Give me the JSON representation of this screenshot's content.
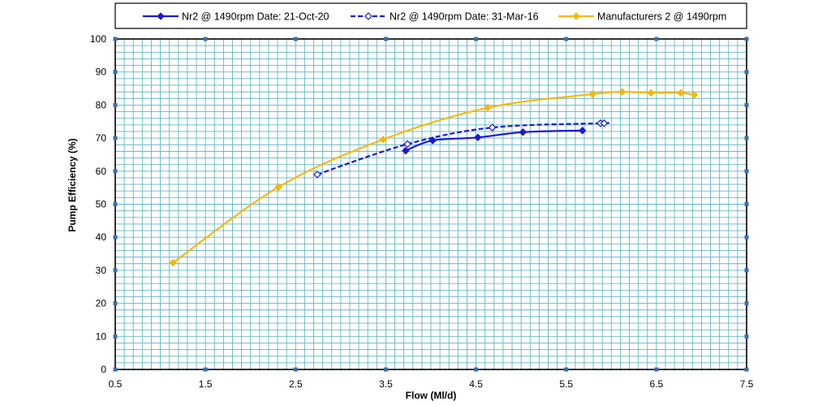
{
  "chart_data": {
    "type": "line",
    "xlabel": "Flow (Ml/d)",
    "ylabel": "Pump Efficiency (%)",
    "xlim": [
      0.5,
      7.5
    ],
    "ylim": [
      0,
      100
    ],
    "x_ticks": [
      "0.5",
      "1.5",
      "2.5",
      "3.5",
      "4.5",
      "5.5",
      "6.5",
      "7.5"
    ],
    "y_ticks": [
      "0",
      "10",
      "20",
      "30",
      "40",
      "50",
      "60",
      "70",
      "80",
      "90",
      "100"
    ],
    "grid": true,
    "legend_position": "top",
    "series": [
      {
        "name": "Nr2 @ 1490rpm Date: 21-Oct-20",
        "color": "#1a1ad4",
        "line_style": "solid",
        "marker": "filled-diamond",
        "x": [
          3.72,
          4.02,
          4.52,
          5.02,
          5.68
        ],
        "y": [
          66.2,
          69.3,
          70.2,
          71.8,
          72.3
        ]
      },
      {
        "name": "Nr2 @ 1490rpm Date: 31-Mar-16",
        "color": "#1a1ad4",
        "line_style": "dashed",
        "marker": "hollow-diamond",
        "x": [
          2.74,
          3.74,
          4.68,
          5.88,
          5.92
        ],
        "y": [
          59.0,
          68.2,
          73.2,
          74.5,
          74.5
        ]
      },
      {
        "name": "Manufacturers 2 @ 1490rpm",
        "color": "#f5b80c",
        "line_style": "solid",
        "marker": "filled-diamond",
        "x": [
          1.14,
          2.31,
          3.47,
          4.63,
          5.79,
          6.12,
          6.44,
          6.77,
          6.92
        ],
        "y": [
          32.3,
          55.2,
          69.6,
          79.2,
          83.3,
          84.0,
          83.7,
          83.7,
          83.1
        ]
      }
    ]
  }
}
